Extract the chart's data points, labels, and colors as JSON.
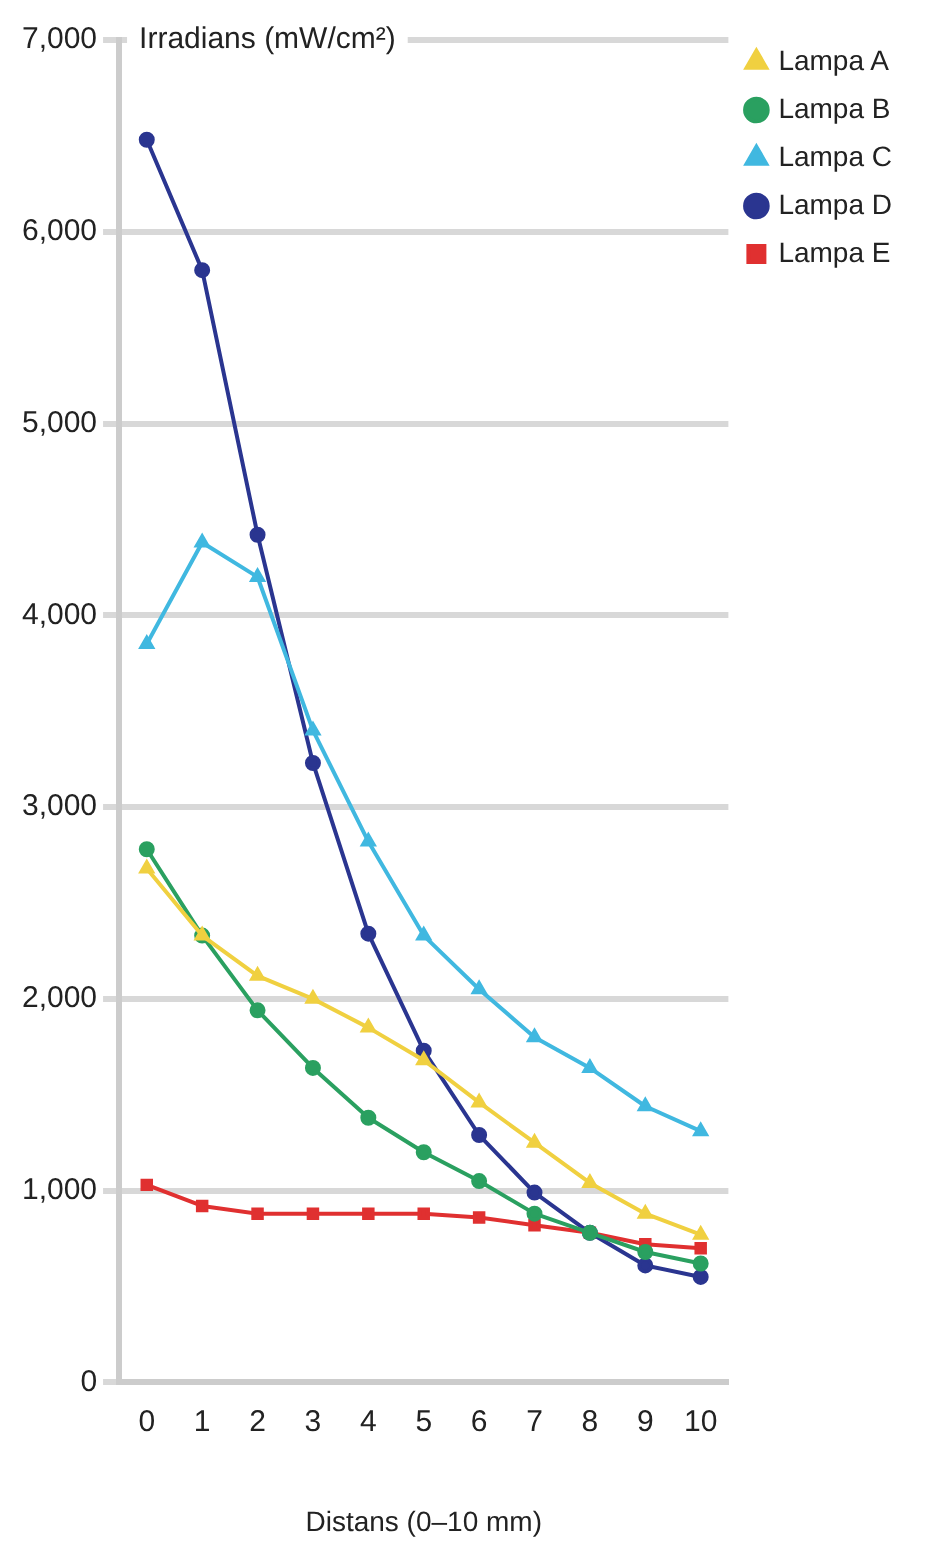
{
  "chart_data": {
    "type": "line",
    "ylabel": "Irradians (mW/cm²)",
    "xlabel": "Distans (0–10 mm)",
    "categories": [
      "0",
      "1",
      "2",
      "3",
      "4",
      "5",
      "6",
      "7",
      "8",
      "9",
      "10"
    ],
    "series": [
      {
        "name": "Lampa A",
        "color": "#f0d040",
        "marker": "triangle",
        "values": [
          2680,
          2330,
          2120,
          2000,
          1850,
          1680,
          1460,
          1250,
          1040,
          880,
          770
        ]
      },
      {
        "name": "Lampa B",
        "color": "#2aa060",
        "marker": "circle",
        "values": [
          2780,
          2330,
          1940,
          1640,
          1380,
          1200,
          1050,
          880,
          780,
          680,
          620
        ]
      },
      {
        "name": "Lampa C",
        "color": "#40b8e0",
        "marker": "triangle",
        "values": [
          3850,
          4380,
          4200,
          3400,
          2820,
          2330,
          2050,
          1800,
          1640,
          1440,
          1310
        ]
      },
      {
        "name": "Lampa D",
        "color": "#2a3590",
        "marker": "circle",
        "values": [
          6480,
          5800,
          4420,
          3230,
          2340,
          1730,
          1290,
          990,
          780,
          610,
          550
        ]
      },
      {
        "name": "Lampa E",
        "color": "#e03030",
        "marker": "square",
        "values": [
          1030,
          920,
          880,
          880,
          880,
          880,
          860,
          820,
          780,
          720,
          700
        ]
      }
    ],
    "ylim": [
      0,
      7000
    ],
    "yticks": [
      {
        "value": 0,
        "label": "0"
      },
      {
        "value": 1000,
        "label": "1,000"
      },
      {
        "value": 2000,
        "label": "2,000"
      },
      {
        "value": 3000,
        "label": "3,000"
      },
      {
        "value": 4000,
        "label": "4,000"
      },
      {
        "value": 5000,
        "label": "5,000"
      },
      {
        "value": 6000,
        "label": "6,000"
      },
      {
        "value": 7000,
        "label": "7,000"
      }
    ],
    "grid": "y",
    "legend": "top right"
  }
}
